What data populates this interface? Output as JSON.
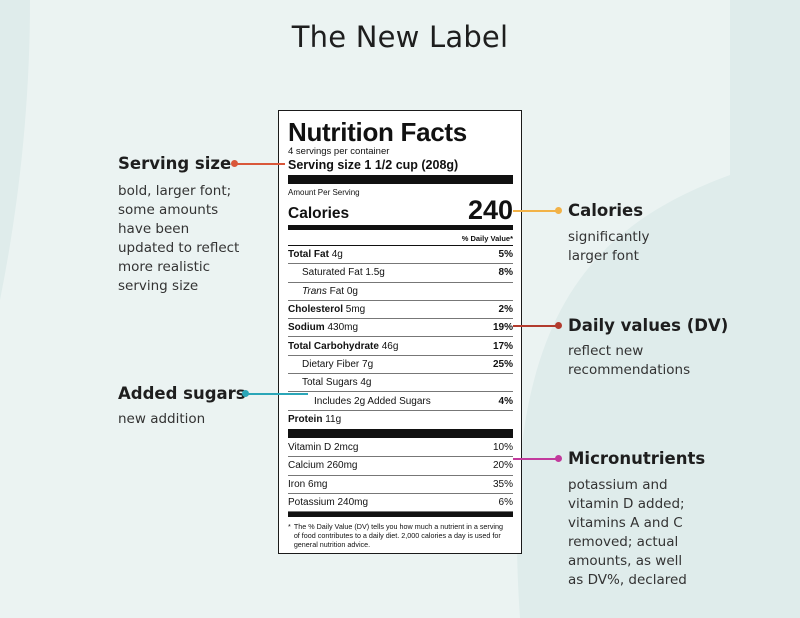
{
  "title": "The New Label",
  "colors": {
    "background": "#dfeceb",
    "background_light": "#ebf3f2",
    "serving_size": "#d9573a",
    "calories": "#f2b247",
    "daily_values": "#b23b2e",
    "added_sugars": "#2aa6b8",
    "micronutrients": "#c23a9c"
  },
  "label": {
    "heading": "Nutrition Facts",
    "servings_per_container": "4 servings per container",
    "serving_size": "Serving size 1 1/2 cup (208g)",
    "amount_per_serving": "Amount Per Serving",
    "calories_label": "Calories",
    "calories_value": "240",
    "dv_header": "% Daily Value*",
    "nutrients": [
      {
        "bold_name": "Total Fat",
        "amount": " 4g",
        "dv": "5%"
      },
      {
        "name": "Saturated Fat 1.5g",
        "dv": "8%"
      },
      {
        "italic_name": "Trans",
        "amount": " Fat 0g",
        "dv": ""
      },
      {
        "bold_name": "Cholesterol",
        "amount": " 5mg",
        "dv": "2%"
      },
      {
        "bold_name": "Sodium",
        "amount": " 430mg",
        "dv": "19%"
      },
      {
        "bold_name": "Total Carbohydrate",
        "amount": " 46g",
        "dv": "17%"
      },
      {
        "name": "Dietary Fiber 7g",
        "dv": "25%"
      },
      {
        "name": "Total Sugars 4g",
        "dv": ""
      },
      {
        "name": "Includes 2g Added Sugars",
        "dv": "4%"
      },
      {
        "bold_name": "Protein",
        "amount": " 11g",
        "dv": ""
      }
    ],
    "micronutrients": [
      {
        "name": "Vitamin D 2mcg",
        "dv": "10%"
      },
      {
        "name": "Calcium 260mg",
        "dv": "20%"
      },
      {
        "name": "Iron 6mg",
        "dv": "35%"
      },
      {
        "name": "Potassium 240mg",
        "dv": "6%"
      }
    ],
    "footnote_star": "*",
    "footnote": "The % Daily Value (DV) tells you how much a nutrient in a serving of food contributes to a daily diet. 2,000 calories a day is used for general nutrition advice."
  },
  "annotations": {
    "serving_size": {
      "heading": "Serving size",
      "lines": [
        "bold, larger font;",
        "some amounts",
        "have been",
        "updated to reflect",
        "more realistic",
        "serving size"
      ]
    },
    "added_sugars": {
      "heading": "Added sugars",
      "lines": [
        "new addition"
      ]
    },
    "calories": {
      "heading": "Calories",
      "lines": [
        "significantly",
        "larger font"
      ]
    },
    "daily_values": {
      "heading": "Daily values (DV)",
      "lines": [
        "reflect new",
        "recommendations"
      ]
    },
    "micronutrients": {
      "heading": "Micronutrients",
      "lines": [
        "potassium and",
        "vitamin D added;",
        "vitamins A and C",
        "removed; actual",
        "amounts, as well",
        "as DV%, declared"
      ]
    }
  }
}
